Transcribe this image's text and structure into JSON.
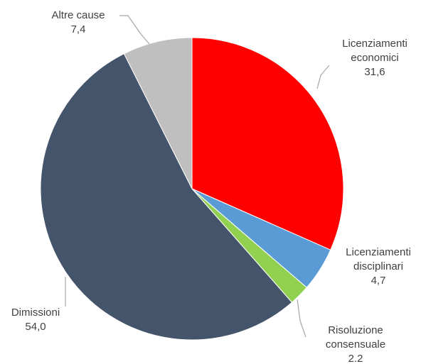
{
  "chart_data": {
    "type": "pie",
    "title": "",
    "slices": [
      {
        "label": [
          "Licenziamenti",
          "economici"
        ],
        "value_label": "31,6",
        "value": 31.6,
        "color": "#ff0000"
      },
      {
        "label": [
          "Licenziamenti",
          "disciplinari"
        ],
        "value_label": "4,7",
        "value": 4.7,
        "color": "#5b9bd5"
      },
      {
        "label": [
          "Risoluzione",
          "consensuale"
        ],
        "value_label": "2.2",
        "value": 2.2,
        "color": "#92d050"
      },
      {
        "label": [
          "Dimissioni"
        ],
        "value_label": "54,0",
        "value": 54.0,
        "color": "#44546a"
      },
      {
        "label": [
          "Altre cause"
        ],
        "value_label": "7,4",
        "value": 7.4,
        "color": "#bfbfbf"
      }
    ]
  }
}
